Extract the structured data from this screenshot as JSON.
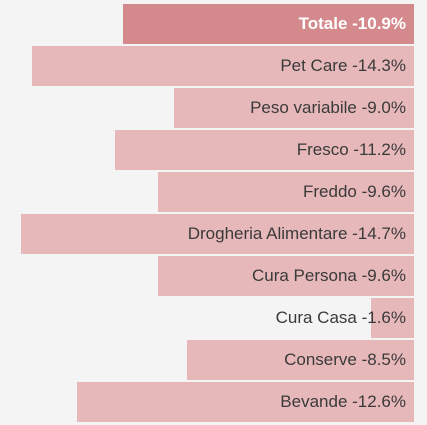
{
  "chart_data": {
    "type": "bar",
    "orientation": "horizontal",
    "categories": [
      "Totale",
      "Pet Care",
      "Peso variabile",
      "Fresco",
      "Freddo",
      "Drogheria Alimentare",
      "Cura Persona",
      "Cura Casa",
      "Conserve",
      "Bevande"
    ],
    "values": [
      -10.9,
      -14.3,
      -9.0,
      -11.2,
      -9.6,
      -14.7,
      -9.6,
      -1.6,
      -8.5,
      -12.6
    ],
    "labels": [
      "Totale -10.9%",
      "Pet Care -14.3%",
      "Peso variabile -9.0%",
      "Fresco -11.2%",
      "Freddo -9.6%",
      "Drogheria Alimentare -14.7%",
      "Cura Persona -9.6%",
      "Cura Casa -1.6%",
      "Conserve -8.5%",
      "Bevande -12.6%"
    ],
    "highlight_index": 0,
    "title": "",
    "xlabel": "",
    "ylabel": "",
    "xlim": [
      -15.5,
      0
    ],
    "grid": false,
    "colors": {
      "bar": "#e6b8b9",
      "bar_highlight": "#d4898c",
      "label": "#3a3a3a",
      "label_highlight": "#ffffff",
      "background": "#f4f4f4"
    }
  }
}
